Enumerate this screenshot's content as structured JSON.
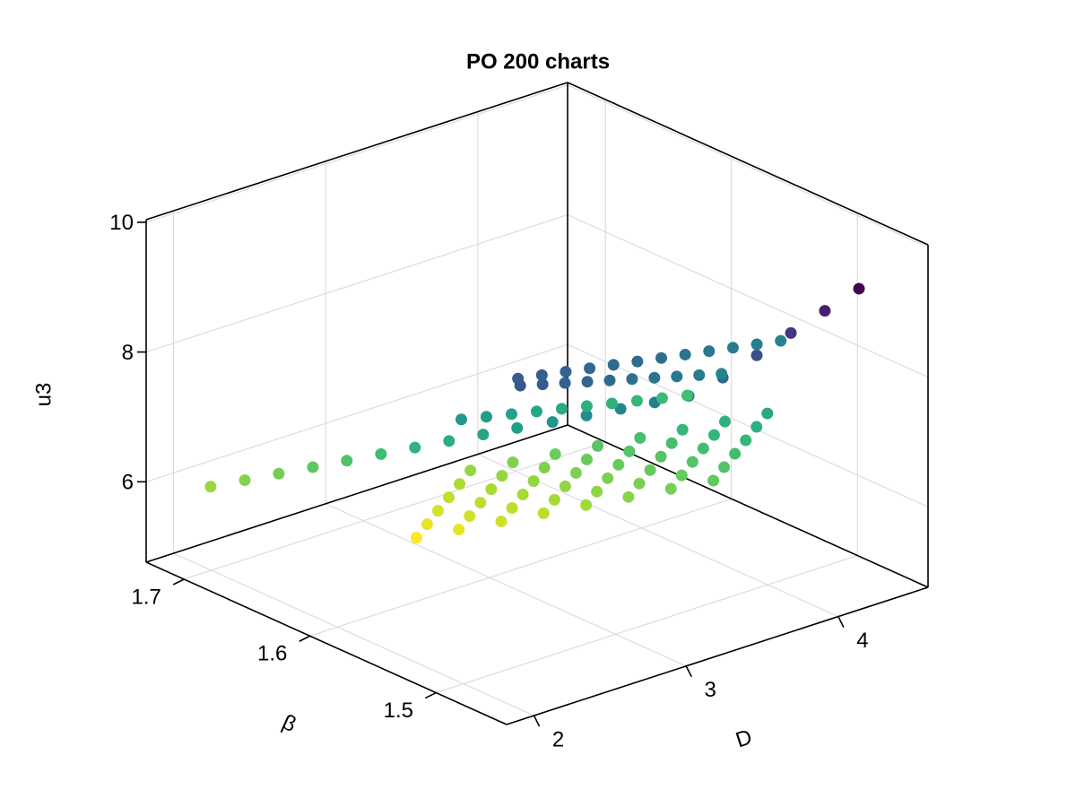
{
  "chart_data": {
    "type": "scatter3d",
    "title": "PO 200 charts",
    "xlabel": "D",
    "ylabel": "β",
    "zlabel": "u3",
    "xlim": [
      1.82,
      4.59
    ],
    "ylim": [
      1.444,
      1.73
    ],
    "zlim": [
      4.76,
      10.04
    ],
    "xticks": [
      2,
      3,
      4
    ],
    "yticks": [
      1.5,
      1.6,
      1.7
    ],
    "zticks": [
      6,
      8,
      10
    ],
    "grid": true,
    "colormap": "viridis_r",
    "x": [
      2.244,
      2.344,
      2.443,
      2.543,
      2.642,
      2.742,
      2.841,
      2.941,
      3.041,
      3.14,
      3.24,
      3.339,
      3.439,
      3.539,
      3.638,
      3.738,
      3.837,
      3.937,
      4.036,
      4.136,
      3.008,
      3.079,
      3.15,
      3.221,
      3.292,
      3.363,
      3.146,
      3.217,
      3.288,
      3.359,
      3.43,
      3.501,
      3.284,
      3.355,
      3.426,
      3.497,
      3.568,
      3.639,
      3.422,
      3.493,
      3.564,
      3.635,
      3.706,
      3.777,
      3.56,
      3.631,
      3.702,
      3.773,
      3.844,
      3.915,
      3.698,
      3.769,
      3.84,
      3.911,
      3.982,
      4.053,
      3.836,
      3.907,
      3.978,
      4.049,
      4.12,
      4.191,
      3.974,
      4.045,
      4.116,
      4.187,
      4.258,
      4.329,
      2.947,
      3.112,
      3.277,
      3.442,
      3.607,
      3.772,
      3.937,
      4.102,
      4.267,
      4.432,
      2.738,
      2.885,
      3.032,
      3.179,
      3.326,
      3.473,
      3.62,
      3.767,
      3.914,
      4.061,
      2.839,
      2.996,
      3.153,
      3.31,
      3.467,
      3.624,
      3.781,
      3.938,
      4.095,
      4.252,
      4.409,
      4.566
    ],
    "y": [
      1.73,
      1.715,
      1.7,
      1.685,
      1.67,
      1.655,
      1.64,
      1.625,
      1.61,
      1.595,
      1.579,
      1.564,
      1.549,
      1.534,
      1.519,
      1.504,
      1.489,
      1.474,
      1.459,
      1.444,
      1.659,
      1.659,
      1.659,
      1.659,
      1.659,
      1.659,
      1.642,
      1.642,
      1.642,
      1.642,
      1.642,
      1.642,
      1.625,
      1.625,
      1.625,
      1.625,
      1.625,
      1.625,
      1.608,
      1.608,
      1.608,
      1.608,
      1.608,
      1.608,
      1.591,
      1.591,
      1.591,
      1.591,
      1.591,
      1.591,
      1.574,
      1.574,
      1.574,
      1.574,
      1.574,
      1.574,
      1.557,
      1.557,
      1.557,
      1.557,
      1.557,
      1.557,
      1.54,
      1.54,
      1.54,
      1.54,
      1.54,
      1.54,
      1.616,
      1.616,
      1.616,
      1.616,
      1.616,
      1.616,
      1.616,
      1.616,
      1.616,
      1.616,
      1.544,
      1.544,
      1.544,
      1.544,
      1.544,
      1.544,
      1.544,
      1.544,
      1.544,
      1.544,
      1.558,
      1.558,
      1.558,
      1.558,
      1.558,
      1.558,
      1.558,
      1.558,
      1.558,
      1.558,
      1.558,
      1.558
    ],
    "z": [
      5.6,
      5.756,
      5.912,
      6.067,
      6.223,
      6.379,
      6.535,
      6.691,
      6.846,
      7.002,
      7.158,
      7.314,
      7.47,
      7.625,
      7.781,
      8.118,
      8.518,
      8.916,
      9.314,
      9.71,
      4.852,
      5.005,
      5.158,
      5.311,
      5.464,
      5.617,
      5.021,
      5.174,
      5.327,
      5.48,
      5.633,
      5.786,
      5.19,
      5.343,
      5.496,
      5.649,
      5.802,
      5.955,
      5.359,
      5.512,
      5.665,
      5.818,
      5.971,
      6.124,
      5.528,
      5.681,
      5.834,
      5.987,
      6.14,
      6.293,
      5.697,
      5.85,
      6.003,
      6.156,
      6.309,
      6.462,
      5.866,
      6.019,
      6.172,
      6.325,
      6.478,
      6.631,
      6.035,
      6.188,
      6.341,
      6.494,
      6.647,
      6.8,
      7.098,
      7.013,
      6.928,
      6.843,
      6.758,
      6.673,
      6.588,
      6.503,
      6.418,
      6.333,
      8.408,
      8.316,
      8.224,
      8.132,
      8.04,
      7.948,
      7.856,
      7.764,
      7.672,
      7.58,
      8.317,
      8.25,
      8.183,
      8.116,
      8.049,
      7.982,
      7.915,
      7.848,
      7.781,
      7.714,
      7.647,
      7.58
    ]
  }
}
